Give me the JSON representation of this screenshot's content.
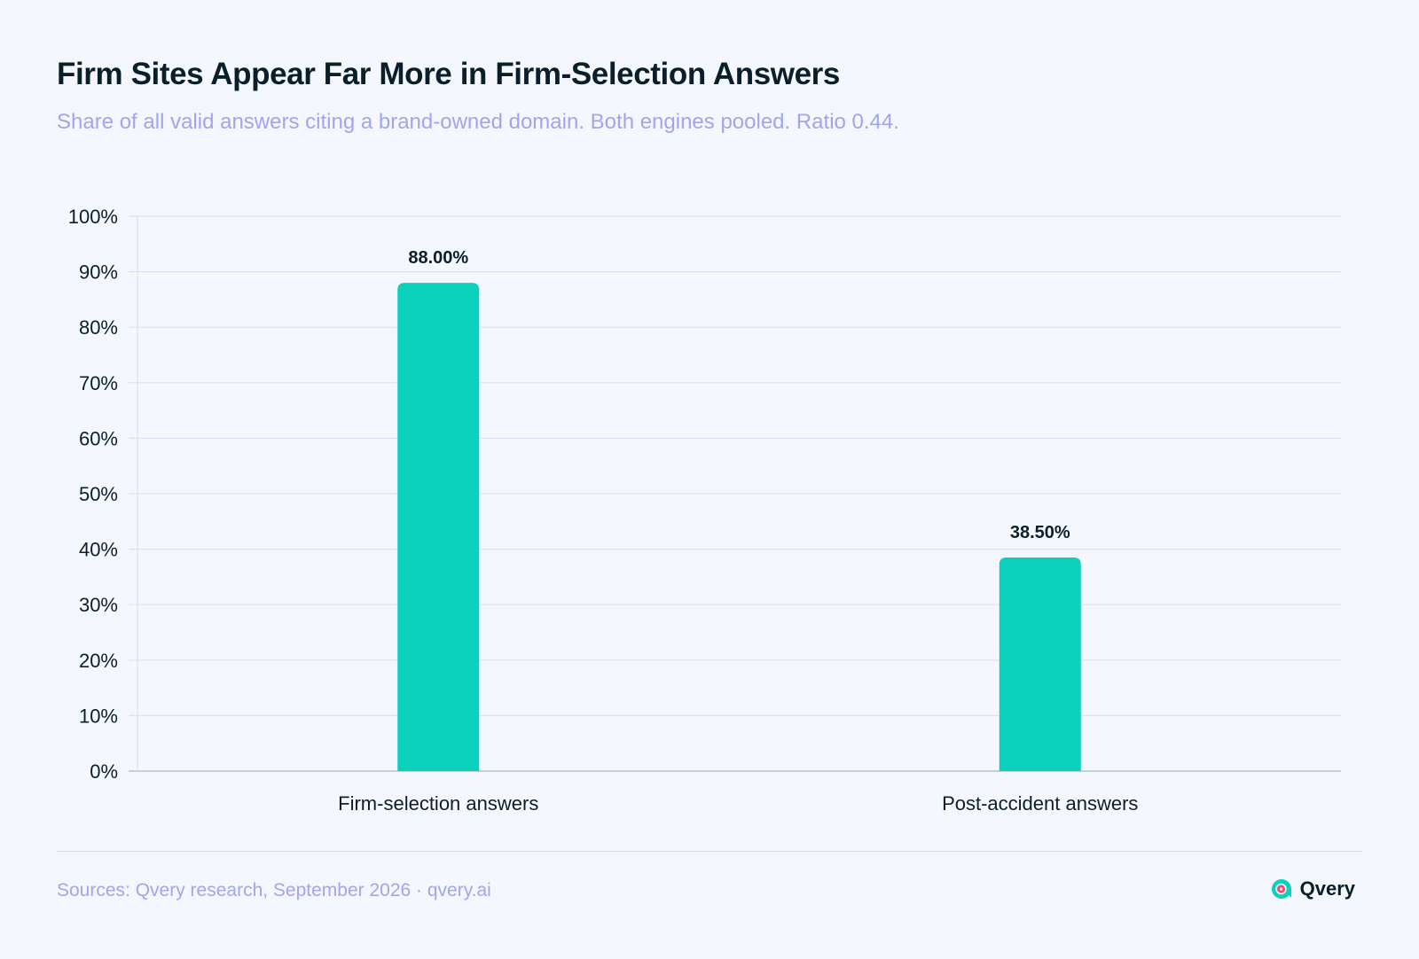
{
  "title": "Firm Sites Appear Far More in Firm-Selection Answers",
  "subtitle": "Share of all valid answers citing a brand-owned domain. Both engines pooled. Ratio 0.44.",
  "footer": {
    "sources": "Sources: Qvery research, September 2026 · qvery.ai",
    "brand": "Qvery"
  },
  "colors": {
    "bar": "#0bd0bb",
    "grid": "#dde2ee",
    "axis": "#b9bfcc",
    "text": "#0b1f2a",
    "muted": "#a3a5ec"
  },
  "icons": {
    "brand_logo": "qvery-logo-icon"
  },
  "chart_data": {
    "type": "bar",
    "categories": [
      "Firm-selection answers",
      "Post-accident answers"
    ],
    "values": [
      88.0,
      38.5
    ],
    "data_labels": [
      "88.00%",
      "38.50%"
    ],
    "ylim": [
      0,
      100
    ],
    "yticks": [
      0,
      10,
      20,
      30,
      40,
      50,
      60,
      70,
      80,
      90,
      100
    ],
    "ytick_labels": [
      "0%",
      "10%",
      "20%",
      "30%",
      "40%",
      "50%",
      "60%",
      "70%",
      "80%",
      "90%",
      "100%"
    ],
    "grid": true,
    "xlabel": "",
    "ylabel": ""
  }
}
